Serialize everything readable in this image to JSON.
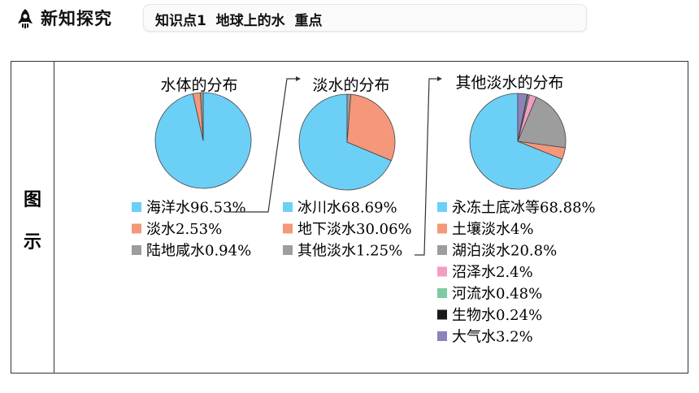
{
  "header": {
    "section_title": "新知探究",
    "subtitle": "知识点1  地球上的水  重点"
  },
  "side_label": [
    "图",
    "示"
  ],
  "colors": {
    "blue": "#6ccff6",
    "salmon": "#f4977a",
    "gray": "#9d9d9d",
    "pink": "#f19ec2",
    "green": "#7ecba1",
    "black": "#1a1a1a",
    "purple": "#8f82bc"
  },
  "chart_data": [
    {
      "type": "pie",
      "title": "水体的分布",
      "slices": [
        {
          "label": "海洋水96.53%",
          "value": 96.53,
          "color": "#6ccff6"
        },
        {
          "label": "淡水2.53%",
          "value": 2.53,
          "color": "#f4977a"
        },
        {
          "label": "陆地咸水0.94%",
          "value": 0.94,
          "color": "#9d9d9d"
        }
      ]
    },
    {
      "type": "pie",
      "title": "淡水的分布",
      "slices": [
        {
          "label": "冰川水68.69%",
          "value": 68.69,
          "color": "#6ccff6"
        },
        {
          "label": "地下淡水30.06%",
          "value": 30.06,
          "color": "#f4977a"
        },
        {
          "label": "其他淡水1.25%",
          "value": 1.25,
          "color": "#9d9d9d"
        }
      ]
    },
    {
      "type": "pie",
      "title": "其他淡水的分布",
      "slices": [
        {
          "label": "永冻土底冰等68.88%",
          "value": 68.88,
          "color": "#6ccff6"
        },
        {
          "label": "土壤淡水4%",
          "value": 4,
          "color": "#f4977a"
        },
        {
          "label": "湖泊淡水20.8%",
          "value": 20.8,
          "color": "#9d9d9d"
        },
        {
          "label": "沼泽水2.4%",
          "value": 2.4,
          "color": "#f19ec2"
        },
        {
          "label": "河流水0.48%",
          "value": 0.48,
          "color": "#7ecba1"
        },
        {
          "label": "生物水0.24%",
          "value": 0.24,
          "color": "#1a1a1a"
        },
        {
          "label": "大气水3.2%",
          "value": 3.2,
          "color": "#8f82bc"
        }
      ]
    }
  ]
}
